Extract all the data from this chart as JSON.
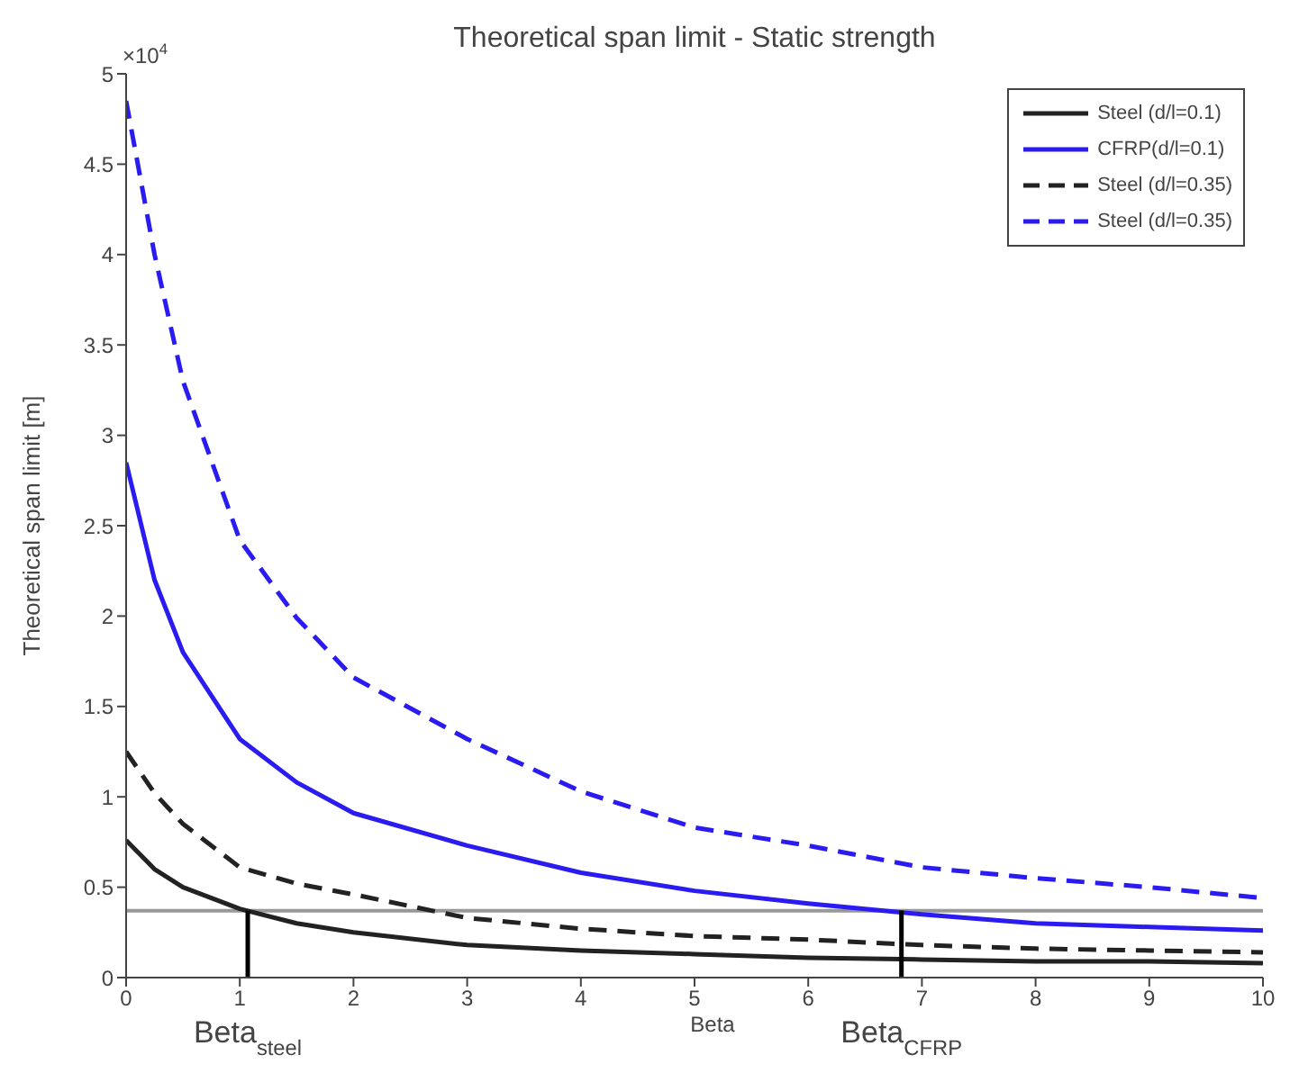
{
  "chart_data": {
    "type": "line",
    "title": "Theoretical span limit - Static strength",
    "xlabel": "Beta",
    "ylabel": "Theoretical span limit [m]",
    "xlim": [
      0,
      10
    ],
    "xticks": [
      0,
      1,
      2,
      3,
      4,
      5,
      6,
      7,
      8,
      9,
      10
    ],
    "ylim": [
      0,
      5
    ],
    "yticks": [
      0,
      0.5,
      1,
      1.5,
      2,
      2.5,
      3,
      3.5,
      4,
      4.5,
      5
    ],
    "grid": false,
    "legend": "top right",
    "series": [
      {
        "name": "Steel (d/l=0.1)",
        "color": "#222222",
        "line_style": "solid",
        "x": [
          0,
          0.25,
          0.5,
          1,
          1.5,
          2,
          3,
          4,
          5,
          6,
          7,
          8,
          9,
          10
        ],
        "values": [
          0.76,
          0.6,
          0.5,
          0.38,
          0.3,
          0.25,
          0.18,
          0.15,
          0.13,
          0.11,
          0.1,
          0.09,
          0.09,
          0.08
        ]
      },
      {
        "name": "CFRP(d/l=0.1)",
        "color": "#2a1cf0",
        "line_style": "solid",
        "x": [
          0,
          0.25,
          0.5,
          1,
          1.5,
          2,
          3,
          4,
          5,
          6,
          7,
          8,
          9,
          10
        ],
        "values": [
          2.85,
          2.2,
          1.8,
          1.32,
          1.08,
          0.91,
          0.73,
          0.58,
          0.48,
          0.41,
          0.35,
          0.3,
          0.28,
          0.26
        ]
      },
      {
        "name": "Steel (d/l=0.35)",
        "color": "#222222",
        "line_style": "dashed",
        "x": [
          0,
          0.25,
          0.5,
          1,
          1.5,
          2,
          3,
          4,
          5,
          6,
          7,
          8,
          9,
          10
        ],
        "values": [
          1.25,
          1.02,
          0.85,
          0.61,
          0.52,
          0.46,
          0.33,
          0.27,
          0.23,
          0.21,
          0.18,
          0.16,
          0.15,
          0.14
        ]
      },
      {
        "name": "Steel (d/l=0.35)",
        "color": "#2a1cf0",
        "line_style": "dashed",
        "x": [
          0,
          0.25,
          0.5,
          1,
          1.5,
          2,
          3,
          4,
          5,
          6,
          7,
          8,
          9,
          10
        ],
        "values": [
          4.85,
          4.0,
          3.3,
          2.42,
          1.99,
          1.66,
          1.32,
          1.03,
          0.83,
          0.73,
          0.61,
          0.55,
          0.5,
          0.44
        ]
      },
      {
        "color": "#000000",
        "line_style": "solid",
        "x": [
          1.07,
          1.07
        ],
        "values": [
          0,
          0.37
        ]
      },
      {
        "color": "#000000",
        "line_style": "solid",
        "x": [
          6.82,
          6.82
        ],
        "values": [
          0,
          0.37
        ]
      }
    ],
    "ref_lines": [
      {
        "axis": "y",
        "value": 0.37,
        "color": "#999999"
      }
    ],
    "annotations": [
      {
        "text": "×10$^{4}$"
      },
      {
        "text": "Beta$_{steel}$",
        "x": 1.07,
        "y": 0
      },
      {
        "text": "Beta$_{CFRP}$",
        "x": 6.82,
        "y": 0
      }
    ]
  }
}
